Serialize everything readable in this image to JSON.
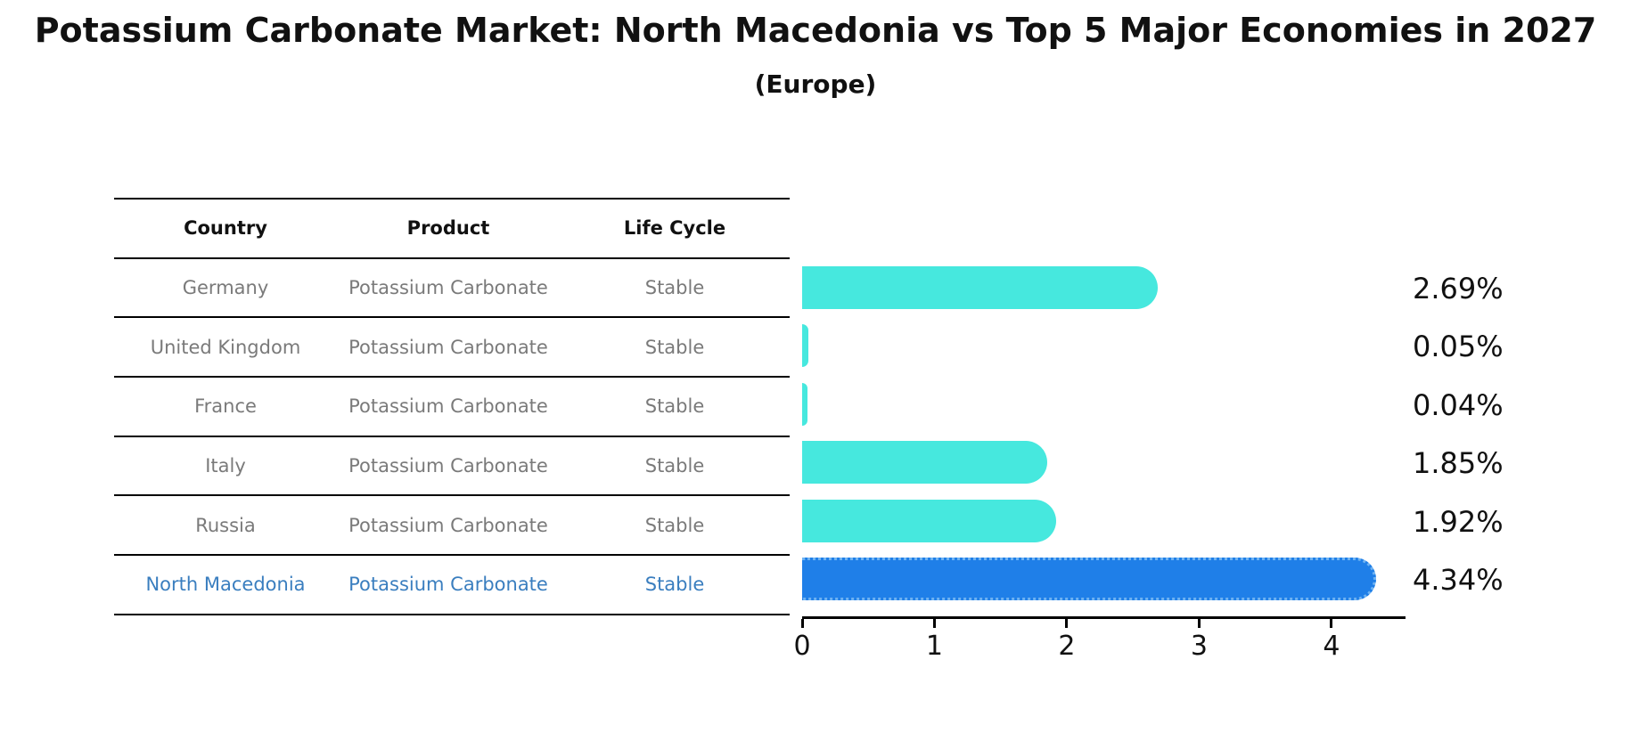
{
  "title": "Potassium Carbonate Market: North Macedonia vs Top 5 Major Economies in 2027",
  "subtitle": "(Europe)",
  "table": {
    "headers": [
      "Country",
      "Product",
      "Life Cycle"
    ],
    "rows": [
      {
        "country": "Germany",
        "product": "Potassium Carbonate",
        "life_cycle": "Stable",
        "highlight": false
      },
      {
        "country": "United Kingdom",
        "product": "Potassium Carbonate",
        "life_cycle": "Stable",
        "highlight": false
      },
      {
        "country": "France",
        "product": "Potassium Carbonate",
        "life_cycle": "Stable",
        "highlight": false
      },
      {
        "country": "Italy",
        "product": "Potassium Carbonate",
        "life_cycle": "Stable",
        "highlight": false
      },
      {
        "country": "Russia",
        "product": "Potassium Carbonate",
        "life_cycle": "Stable",
        "highlight": true
      }
    ],
    "last_row": {
      "country": "North Macedonia",
      "product": "Potassium Carbonate",
      "life_cycle": "Stable"
    }
  },
  "chart_data": {
    "type": "bar",
    "orientation": "horizontal",
    "title": "Potassium Carbonate Market: North Macedonia vs Top 5 Major Economies in 2027 (Europe)",
    "categories": [
      "Germany",
      "United Kingdom",
      "France",
      "Italy",
      "Russia",
      "North Macedonia"
    ],
    "values": [
      2.69,
      0.05,
      0.04,
      1.85,
      1.92,
      4.34
    ],
    "labels": [
      "2.69%",
      "0.05%",
      "0.04%",
      "1.85%",
      "1.92%",
      "4.34%"
    ],
    "highlight_index": 5,
    "x_ticks": [
      0,
      1,
      2,
      3,
      4
    ],
    "xlim": [
      0,
      4.56
    ],
    "grid": false,
    "legend": false,
    "unit": "%"
  },
  "colors": {
    "bar": "#46e8de",
    "highlight_bar": "#1f7fe8",
    "highlight_border": "#6fb3f2",
    "highlight_text": "#3a7ebf",
    "table_text": "#7a7a7a",
    "line": "#000000",
    "background": "#ffffff"
  }
}
